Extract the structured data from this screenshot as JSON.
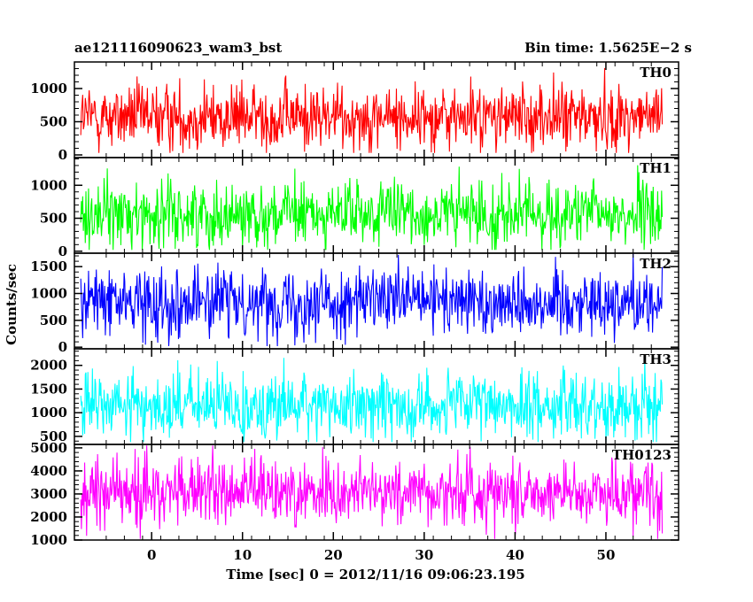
{
  "header": {
    "left": "ae121116090623_wam3_bst",
    "right": "Bin time: 1.5625E−2 s"
  },
  "chart_data": {
    "type": "line",
    "xlabel": "Time [sec] 0 = 2012/11/16 09:06:23.195",
    "ylabel": "Counts/sec",
    "xlim": [
      -8.5,
      58
    ],
    "data_x_range": [
      -7.8,
      56.2
    ],
    "bin_time_s": 0.015625,
    "x_ticks": [
      0,
      10,
      20,
      30,
      40,
      50
    ],
    "grid": false,
    "panels": [
      {
        "name": "TH0",
        "color": "#ff0000",
        "ylim": [
          -40,
          1400
        ],
        "y_ticks": [
          0,
          500,
          1000
        ],
        "baseline": 570,
        "min": 30,
        "max": 1400
      },
      {
        "name": "TH1",
        "color": "#00ff00",
        "ylim": [
          -30,
          1420
        ],
        "y_ticks": [
          0,
          500,
          1000
        ],
        "baseline": 560,
        "min": 20,
        "max": 1380
      },
      {
        "name": "TH2",
        "color": "#0000ff",
        "ylim": [
          -30,
          1750
        ],
        "y_ticks": [
          0,
          500,
          1000,
          1500
        ],
        "baseline": 850,
        "min": 20,
        "max": 1750
      },
      {
        "name": "TH3",
        "color": "#00ffff",
        "ylim": [
          330,
          2350
        ],
        "y_ticks": [
          500,
          1000,
          1500,
          2000
        ],
        "baseline": 1150,
        "min": 380,
        "max": 2320
      },
      {
        "name": "TH0123",
        "color": "#ff00ff",
        "ylim": [
          1000,
          5150
        ],
        "y_ticks": [
          1000,
          2000,
          3000,
          4000,
          5000
        ],
        "baseline": 3100,
        "min": 1050,
        "max": 5100
      }
    ]
  }
}
